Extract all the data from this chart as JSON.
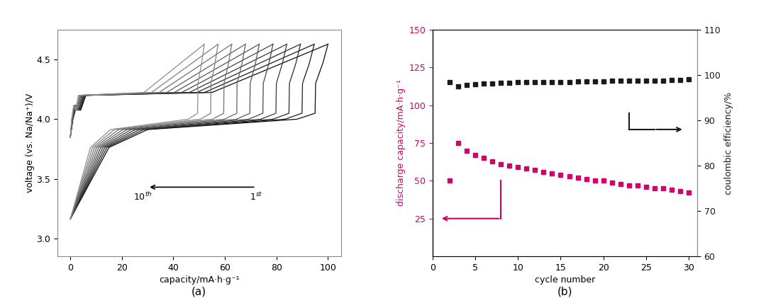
{
  "panel_a": {
    "xlabel": "capacity/mA·h·g⁻¹",
    "ylabel": "voltage (vs. Na/Na⁺)/V",
    "xlim": [
      -5,
      105
    ],
    "ylim": [
      2.85,
      4.75
    ],
    "yticks": [
      3.0,
      3.5,
      4.0,
      4.5
    ],
    "xticks": [
      0,
      20,
      40,
      60,
      80,
      100
    ],
    "label_a": "(a)",
    "n_cycles": 10
  },
  "panel_b": {
    "xlabel": "cycle number",
    "ylabel_left": "discharge capacity/mA·h·g⁻¹",
    "ylabel_right": "coulombic efficiency/%",
    "xlim": [
      0,
      31
    ],
    "ylim_left": [
      0,
      150
    ],
    "ylim_right": [
      60,
      110
    ],
    "yticks_left": [
      25,
      50,
      75,
      100,
      125,
      150
    ],
    "yticks_right": [
      60,
      70,
      80,
      90,
      100,
      110
    ],
    "xticks": [
      0,
      5,
      10,
      15,
      20,
      25,
      30
    ],
    "label_b": "(b)",
    "discharge_capacity_x": [
      2,
      3,
      4,
      5,
      6,
      7,
      8,
      9,
      10,
      11,
      12,
      13,
      14,
      15,
      16,
      17,
      18,
      19,
      20,
      21,
      22,
      23,
      24,
      25,
      26,
      27,
      28,
      29,
      30
    ],
    "discharge_capacity_y": [
      50,
      75,
      70,
      67,
      65,
      63,
      61,
      60,
      59,
      58,
      57,
      56,
      55,
      54,
      53,
      52,
      51,
      50,
      50,
      49,
      48,
      47,
      47,
      46,
      45,
      45,
      44,
      43,
      42
    ],
    "coulombic_efficiency_x": [
      2,
      3,
      4,
      5,
      6,
      7,
      8,
      9,
      10,
      11,
      12,
      13,
      14,
      15,
      16,
      17,
      18,
      19,
      20,
      21,
      22,
      23,
      24,
      25,
      26,
      27,
      28,
      29,
      30
    ],
    "coulombic_efficiency_y": [
      98.5,
      97.5,
      97.8,
      98.0,
      98.1,
      98.2,
      98.3,
      98.3,
      98.4,
      98.4,
      98.5,
      98.5,
      98.5,
      98.5,
      98.5,
      98.6,
      98.6,
      98.6,
      98.6,
      98.7,
      98.7,
      98.7,
      98.8,
      98.8,
      98.8,
      98.8,
      98.9,
      98.9,
      99.0
    ],
    "black_color": "#1a1a1a",
    "pink_color": "#d4006a"
  },
  "background_color": "#ffffff",
  "pink_color": "#d4006a"
}
